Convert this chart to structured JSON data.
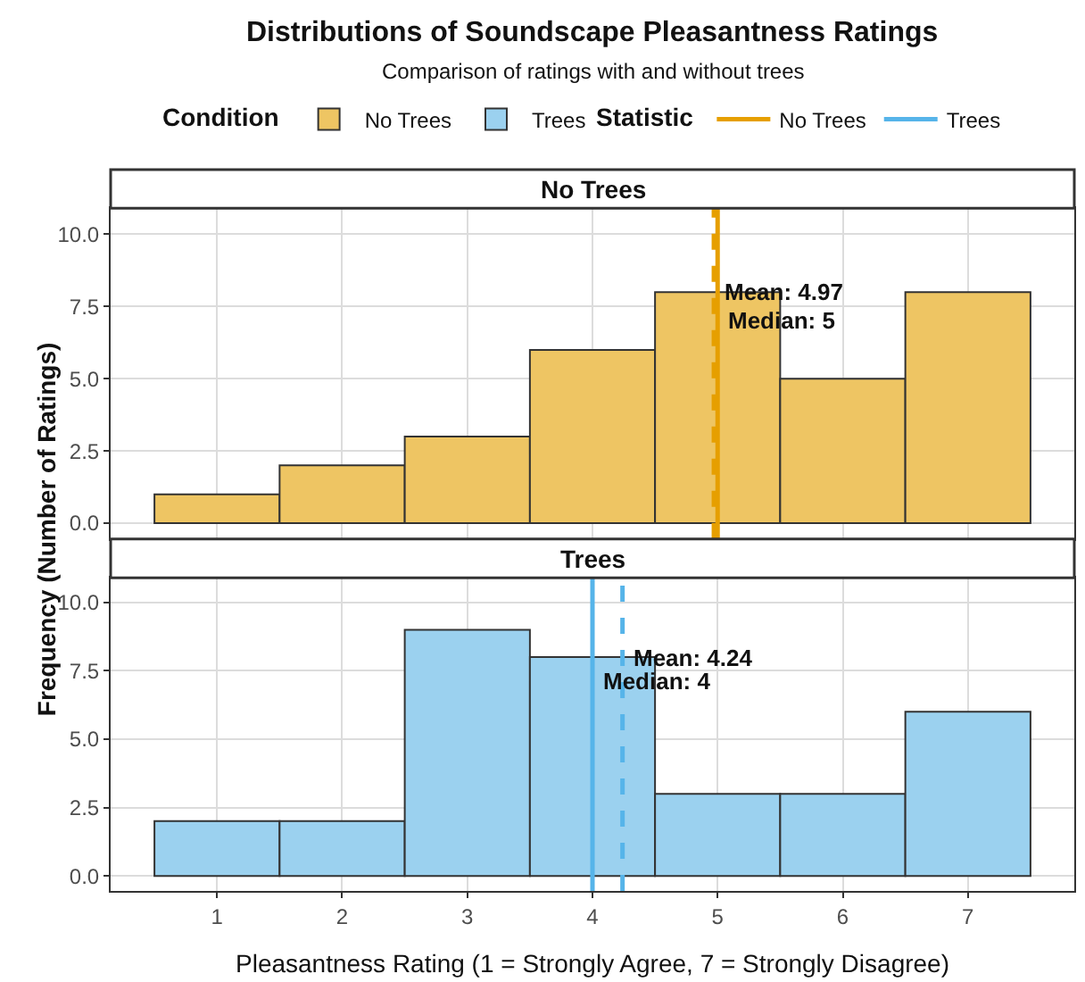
{
  "chart_data": [
    {
      "type": "histogram",
      "title": "No Trees",
      "annotations": [
        "Distributions of Soundscape Pleasantness Ratings",
        "Comparison of ratings with and without trees",
        {
          "text": "Mean: 4.97",
          "x": 4.97,
          "y": 8
        },
        {
          "text": "Median: 5",
          "x": 5,
          "y": 7
        }
      ],
      "ylabel": "Frequency (Number of Ratings)",
      "legend_title": "Condition",
      "legend": "top",
      "grid": true,
      "tick_labels": "y",
      "bins": [
        0.5,
        1.5,
        2.5,
        3.5,
        4.5,
        5.5,
        6.5,
        7.5
      ],
      "series": [
        {
          "name": "No Trees",
          "color": "#eec563",
          "values": [
            1,
            2,
            3,
            6,
            8,
            5,
            8
          ]
        }
      ],
      "ref_lines": [
        {
          "axis": "x",
          "value": 4.97,
          "color": "#e69f00",
          "line_style": "dashed"
        },
        {
          "axis": "x",
          "value": 5,
          "color": "#e69f00",
          "line_style": "solid",
          "label": "No Trees"
        }
      ],
      "xlim": [
        0.15,
        7.85
      ],
      "xticks": [
        1,
        2,
        3,
        4,
        5,
        6,
        7
      ],
      "ylim": [
        -0.55,
        10.9
      ],
      "yticks": [
        {
          "value": 0,
          "label": "0.0"
        },
        {
          "value": 2.5,
          "label": "2.5"
        },
        {
          "value": 5,
          "label": "5.0"
        },
        {
          "value": 7.5,
          "label": "7.5"
        },
        {
          "value": 10,
          "label": "10.0"
        }
      ]
    },
    {
      "type": "histogram",
      "title": "Trees",
      "annotations": [
        {
          "text": "Mean: 4.24",
          "x": 4.24,
          "y": 8
        },
        {
          "text": "Median: 4",
          "x": 4,
          "y": 7.1
        }
      ],
      "xlabel": "Pleasantness Rating (1 = Strongly Agree, 7 = Strongly Disagree)",
      "legend_title": "Statistic",
      "legend": "top",
      "grid": true,
      "bins": [
        0.5,
        1.5,
        2.5,
        3.5,
        4.5,
        5.5,
        6.5,
        7.5
      ],
      "series": [
        {
          "name": "Trees",
          "color": "#9bd1ef",
          "values": [
            2,
            2,
            9,
            8,
            3,
            3,
            6
          ]
        }
      ],
      "ref_lines": [
        {
          "axis": "x",
          "value": 4.24,
          "color": "#56b4e9",
          "line_style": "dashed"
        },
        {
          "axis": "x",
          "value": 4,
          "color": "#56b4e9",
          "line_style": "solid",
          "label": "Trees"
        }
      ],
      "xlim": [
        0.15,
        7.85
      ],
      "xticks": [
        1,
        2,
        3,
        4,
        5,
        6,
        7
      ],
      "ylim": [
        -0.55,
        10.9
      ],
      "yticks": [
        {
          "value": 0,
          "label": "0.0"
        },
        {
          "value": 2.5,
          "label": "2.5"
        },
        {
          "value": 5,
          "label": "5.0"
        },
        {
          "value": 7.5,
          "label": "7.5"
        },
        {
          "value": 10,
          "label": "10.0"
        }
      ]
    }
  ]
}
